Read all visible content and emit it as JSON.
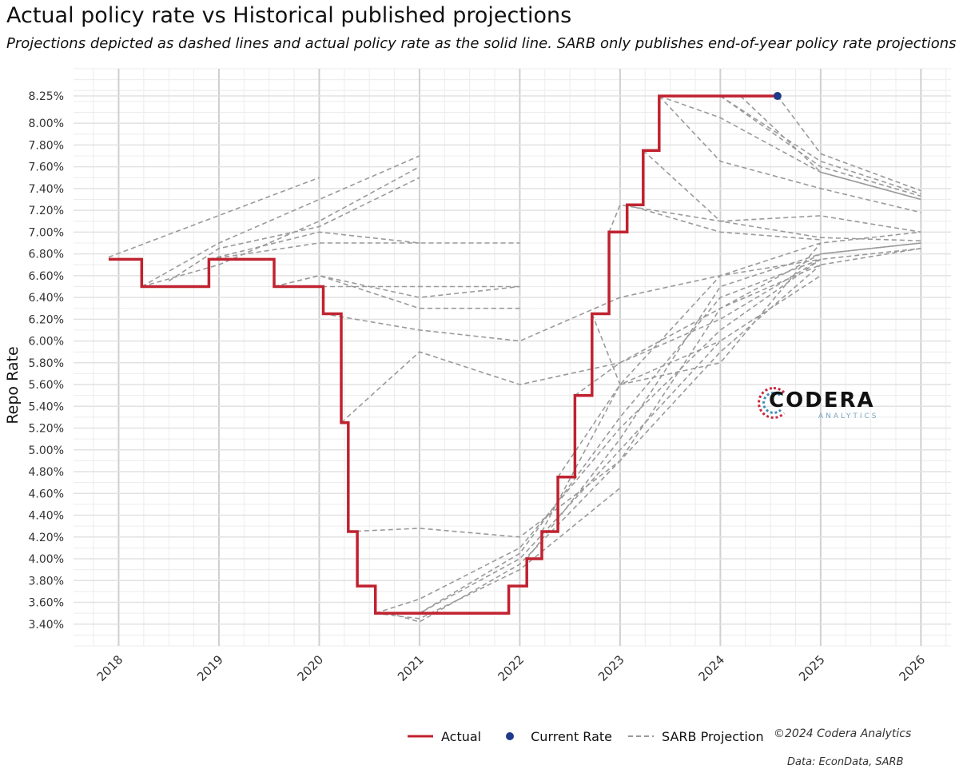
{
  "title": "Actual policy rate vs Historical published projections",
  "subtitle": "Projections depicted as dashed lines and actual policy rate as the solid line. SARB only publishes end-of-year policy rate projections",
  "watermark": {
    "name": "CODERA",
    "sub": "ANALYTICS"
  },
  "legend": {
    "actual": "Actual",
    "current": "Current Rate",
    "projection": "SARB Projection",
    "copyright": "©2024 Codera Analytics"
  },
  "caption": "Data: EconData, SARB",
  "colors": {
    "actual": "#c0222f",
    "current": "#1f3a8a",
    "projection": "#9a9a9a",
    "grid_major": "#d0d0d0",
    "grid_minor": "#ececec"
  },
  "chart_data": {
    "type": "line",
    "ylabel": "Repo Rate",
    "xlabel": "",
    "xlim": [
      2017.55,
      2026.3
    ],
    "ylim": [
      3.2,
      8.5
    ],
    "x_ticks": [
      2018,
      2019,
      2020,
      2021,
      2022,
      2023,
      2024,
      2025,
      2026
    ],
    "y_ticks": [
      3.4,
      3.6,
      3.8,
      4.0,
      4.2,
      4.4,
      4.6,
      4.8,
      5.0,
      5.2,
      5.4,
      5.6,
      5.8,
      6.0,
      6.2,
      6.4,
      6.6,
      6.8,
      7.0,
      7.2,
      7.4,
      7.6,
      7.8,
      8.0,
      8.25
    ],
    "y_tick_labels": [
      "3.40%",
      "3.60%",
      "3.80%",
      "4.00%",
      "4.20%",
      "4.40%",
      "4.60%",
      "4.80%",
      "5.00%",
      "5.20%",
      "5.40%",
      "5.60%",
      "5.80%",
      "6.00%",
      "6.20%",
      "6.40%",
      "6.60%",
      "6.80%",
      "7.00%",
      "7.20%",
      "7.40%",
      "7.60%",
      "7.80%",
      "8.00%",
      "8.25%"
    ],
    "actual": {
      "name": "Actual",
      "steps": [
        [
          2017.9,
          6.75
        ],
        [
          2018.23,
          6.5
        ],
        [
          2018.9,
          6.75
        ],
        [
          2019.55,
          6.5
        ],
        [
          2020.04,
          6.25
        ],
        [
          2020.22,
          5.25
        ],
        [
          2020.29,
          4.25
        ],
        [
          2020.38,
          3.75
        ],
        [
          2020.56,
          3.5
        ],
        [
          2021.89,
          3.75
        ],
        [
          2022.07,
          4.0
        ],
        [
          2022.22,
          4.25
        ],
        [
          2022.38,
          4.75
        ],
        [
          2022.55,
          5.5
        ],
        [
          2022.72,
          6.25
        ],
        [
          2022.89,
          7.0
        ],
        [
          2023.07,
          7.25
        ],
        [
          2023.23,
          7.75
        ],
        [
          2023.39,
          8.25
        ]
      ],
      "end_x": 2024.57
    },
    "current_rate": {
      "name": "Current Rate",
      "x": 2024.57,
      "y": 8.25
    },
    "projections": [
      {
        "points": [
          [
            2017.9,
            6.77
          ],
          [
            2020.0,
            7.5
          ]
        ]
      },
      {
        "points": [
          [
            2018.23,
            6.5
          ],
          [
            2019.0,
            6.9
          ],
          [
            2020.0,
            7.3
          ],
          [
            2021.0,
            7.7
          ]
        ]
      },
      {
        "points": [
          [
            2018.23,
            6.5
          ],
          [
            2019.0,
            6.7
          ],
          [
            2020.0,
            7.1
          ],
          [
            2021.0,
            7.6
          ]
        ]
      },
      {
        "points": [
          [
            2018.5,
            6.55
          ],
          [
            2019.0,
            6.85
          ],
          [
            2020.0,
            7.05
          ],
          [
            2021.0,
            7.5
          ]
        ]
      },
      {
        "points": [
          [
            2018.9,
            6.75
          ],
          [
            2020.0,
            7.0
          ],
          [
            2021.0,
            6.9
          ],
          [
            2022.0,
            6.9
          ]
        ]
      },
      {
        "points": [
          [
            2018.9,
            6.75
          ],
          [
            2020.0,
            6.9
          ],
          [
            2021.0,
            6.9
          ]
        ]
      },
      {
        "points": [
          [
            2019.55,
            6.5
          ],
          [
            2020.0,
            6.6
          ],
          [
            2021.0,
            6.4
          ],
          [
            2022.0,
            6.5
          ]
        ]
      },
      {
        "points": [
          [
            2019.55,
            6.5
          ],
          [
            2020.0,
            6.6
          ],
          [
            2021.0,
            6.3
          ],
          [
            2022.0,
            6.3
          ]
        ]
      },
      {
        "points": [
          [
            2019.55,
            6.5
          ],
          [
            2021.0,
            6.5
          ],
          [
            2022.0,
            6.5
          ]
        ]
      },
      {
        "points": [
          [
            2020.04,
            6.25
          ],
          [
            2021.0,
            6.1
          ],
          [
            2022.0,
            6.0
          ],
          [
            2023.0,
            6.4
          ],
          [
            2024.0,
            6.6
          ],
          [
            2025.0,
            6.75
          ]
        ]
      },
      {
        "points": [
          [
            2020.22,
            5.25
          ],
          [
            2021.0,
            5.9
          ],
          [
            2022.0,
            5.6
          ],
          [
            2023.0,
            5.8
          ],
          [
            2024.0,
            6.2
          ],
          [
            2025.0,
            6.75
          ]
        ]
      },
      {
        "points": [
          [
            2020.29,
            4.25
          ],
          [
            2021.0,
            4.28
          ],
          [
            2022.0,
            4.2
          ],
          [
            2023.0,
            4.9
          ],
          [
            2024.0,
            5.9
          ],
          [
            2025.0,
            6.7
          ]
        ]
      },
      {
        "points": [
          [
            2020.56,
            3.5
          ],
          [
            2021.0,
            3.63
          ],
          [
            2022.0,
            4.1
          ],
          [
            2023.0,
            5.2
          ],
          [
            2024.0,
            6.1
          ],
          [
            2025.0,
            6.75
          ]
        ]
      },
      {
        "points": [
          [
            2020.56,
            3.5
          ],
          [
            2021.0,
            3.45
          ],
          [
            2022.0,
            3.9
          ],
          [
            2023.0,
            4.65
          ]
        ]
      },
      {
        "points": [
          [
            2020.56,
            3.5
          ],
          [
            2021.0,
            3.5
          ],
          [
            2022.0,
            4.0
          ],
          [
            2023.0,
            5.0
          ],
          [
            2024.0,
            6.0
          ],
          [
            2025.0,
            6.6
          ]
        ]
      },
      {
        "points": [
          [
            2020.7,
            3.5
          ],
          [
            2021.0,
            3.42
          ],
          [
            2022.0,
            3.95
          ],
          [
            2023.0,
            4.9
          ],
          [
            2024.0,
            6.3
          ],
          [
            2025.0,
            6.8
          ],
          [
            2026.0,
            6.9
          ]
        ]
      },
      {
        "points": [
          [
            2021.0,
            3.5
          ],
          [
            2022.0,
            4.05
          ],
          [
            2023.0,
            5.3
          ],
          [
            2024.0,
            6.4
          ],
          [
            2025.0,
            6.75
          ],
          [
            2026.0,
            6.85
          ]
        ]
      },
      {
        "points": [
          [
            2022.07,
            4.0
          ],
          [
            2023.0,
            5.1
          ],
          [
            2024.0,
            6.5
          ],
          [
            2025.0,
            6.8
          ],
          [
            2026.0,
            6.9
          ]
        ]
      },
      {
        "points": [
          [
            2022.22,
            4.25
          ],
          [
            2023.0,
            5.6
          ],
          [
            2024.0,
            6.6
          ],
          [
            2025.0,
            6.9
          ],
          [
            2026.0,
            7.0
          ]
        ]
      },
      {
        "points": [
          [
            2022.38,
            4.75
          ],
          [
            2023.0,
            5.6
          ],
          [
            2024.0,
            5.8
          ],
          [
            2025.0,
            6.9
          ]
        ]
      },
      {
        "points": [
          [
            2022.55,
            5.5
          ],
          [
            2023.0,
            5.8
          ],
          [
            2024.0,
            6.3
          ],
          [
            2025.0,
            6.7
          ],
          [
            2026.0,
            6.85
          ]
        ]
      },
      {
        "points": [
          [
            2022.72,
            6.25
          ],
          [
            2023.0,
            5.6
          ],
          [
            2024.0,
            6.0
          ]
        ]
      },
      {
        "points": [
          [
            2022.89,
            7.0
          ],
          [
            2023.0,
            7.25
          ],
          [
            2024.0,
            7.1
          ],
          [
            2025.0,
            6.95
          ],
          [
            2026.0,
            6.92
          ]
        ]
      },
      {
        "points": [
          [
            2023.07,
            7.25
          ],
          [
            2024.0,
            7.0
          ],
          [
            2025.0,
            6.93
          ]
        ]
      },
      {
        "points": [
          [
            2023.23,
            7.75
          ],
          [
            2024.0,
            7.1
          ],
          [
            2025.0,
            7.15
          ],
          [
            2026.0,
            7.0
          ]
        ]
      },
      {
        "points": [
          [
            2023.39,
            8.25
          ],
          [
            2024.0,
            7.65
          ],
          [
            2025.0,
            7.4
          ],
          [
            2026.0,
            7.18
          ]
        ]
      },
      {
        "points": [
          [
            2023.39,
            8.25
          ],
          [
            2024.0,
            8.05
          ],
          [
            2025.0,
            7.55
          ],
          [
            2026.0,
            7.3
          ]
        ]
      },
      {
        "points": [
          [
            2023.6,
            8.25
          ],
          [
            2024.0,
            8.25
          ],
          [
            2025.0,
            7.6
          ],
          [
            2026.0,
            7.33
          ]
        ]
      },
      {
        "points": [
          [
            2024.0,
            8.25
          ],
          [
            2025.0,
            7.65
          ],
          [
            2026.0,
            7.35
          ]
        ]
      },
      {
        "points": [
          [
            2024.2,
            8.25
          ],
          [
            2025.0,
            7.55
          ],
          [
            2026.0,
            7.3
          ]
        ]
      },
      {
        "points": [
          [
            2024.57,
            8.25
          ],
          [
            2025.0,
            7.72
          ],
          [
            2026.0,
            7.38
          ]
        ]
      }
    ]
  }
}
